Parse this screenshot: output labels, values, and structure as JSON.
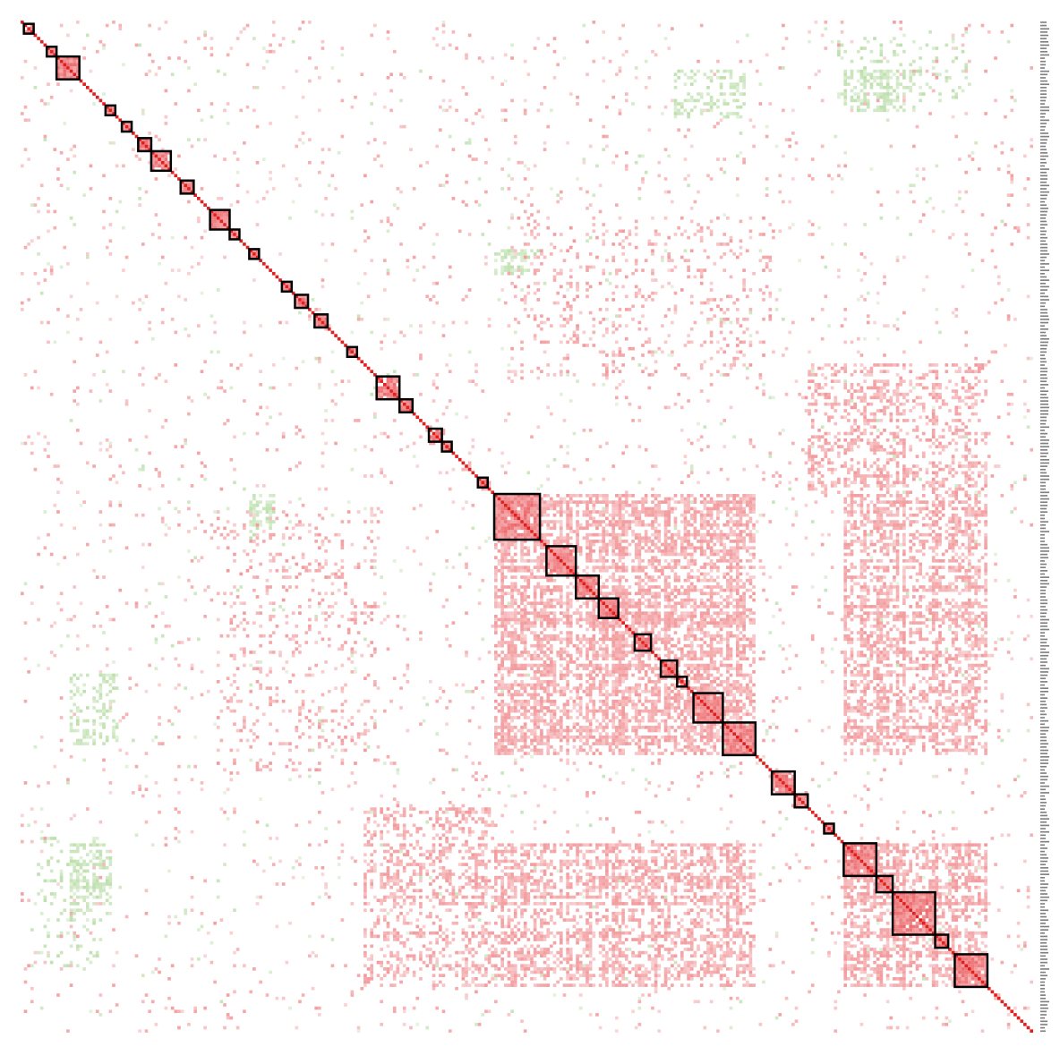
{
  "chart_data": {
    "type": "heatmap",
    "title": "",
    "xlabel": "",
    "ylabel": "",
    "n_variables": 310,
    "value_range": [
      -1,
      1
    ],
    "colors": {
      "positive": "#e8474b",
      "negative": "#88c66a",
      "diagonal": "#e0201f",
      "cluster_outline": "#000000",
      "background": "#ffffff"
    },
    "grid": false,
    "legend": "none",
    "row_tick_labels_visible": true,
    "clusters": [
      {
        "start": 1,
        "end": 4
      },
      {
        "start": 8,
        "end": 11
      },
      {
        "start": 11,
        "end": 18
      },
      {
        "start": 26,
        "end": 29
      },
      {
        "start": 31,
        "end": 34
      },
      {
        "start": 36,
        "end": 40
      },
      {
        "start": 40,
        "end": 46
      },
      {
        "start": 49,
        "end": 53
      },
      {
        "start": 58,
        "end": 64
      },
      {
        "start": 64,
        "end": 67
      },
      {
        "start": 70,
        "end": 73
      },
      {
        "start": 80,
        "end": 83
      },
      {
        "start": 84,
        "end": 88
      },
      {
        "start": 90,
        "end": 94
      },
      {
        "start": 100,
        "end": 103
      },
      {
        "start": 109,
        "end": 116
      },
      {
        "start": 116,
        "end": 120
      },
      {
        "start": 125,
        "end": 129
      },
      {
        "start": 129,
        "end": 132
      },
      {
        "start": 140,
        "end": 143
      },
      {
        "start": 145,
        "end": 159
      },
      {
        "start": 161,
        "end": 170
      },
      {
        "start": 170,
        "end": 177
      },
      {
        "start": 177,
        "end": 183
      },
      {
        "start": 188,
        "end": 193
      },
      {
        "start": 196,
        "end": 201
      },
      {
        "start": 201,
        "end": 204
      },
      {
        "start": 206,
        "end": 215
      },
      {
        "start": 215,
        "end": 225
      },
      {
        "start": 230,
        "end": 237
      },
      {
        "start": 237,
        "end": 241
      },
      {
        "start": 246,
        "end": 249
      },
      {
        "start": 252,
        "end": 262
      },
      {
        "start": 262,
        "end": 267
      },
      {
        "start": 267,
        "end": 280
      },
      {
        "start": 280,
        "end": 284
      },
      {
        "start": 286,
        "end": 296
      }
    ],
    "dense_positive_blocks": [
      {
        "rows": [
          145,
          225
        ],
        "cols": [
          145,
          225
        ],
        "strength": 0.55
      },
      {
        "rows": [
          145,
          225
        ],
        "cols": [
          252,
          296
        ],
        "strength": 0.45
      },
      {
        "rows": [
          252,
          296
        ],
        "cols": [
          145,
          225
        ],
        "strength": 0.45
      },
      {
        "rows": [
          252,
          296
        ],
        "cols": [
          252,
          296
        ],
        "strength": 0.6
      },
      {
        "rows": [
          240,
          296
        ],
        "cols": [
          105,
          145
        ],
        "strength": 0.3
      },
      {
        "rows": [
          105,
          145
        ],
        "cols": [
          240,
          296
        ],
        "strength": 0.3
      },
      {
        "rows": [
          60,
          110
        ],
        "cols": [
          150,
          230
        ],
        "strength": 0.18
      }
    ],
    "dense_negative_blocks": [
      {
        "rows": [
          70,
          78
        ],
        "cols": [
          145,
          160
        ],
        "strength": 0.4
      },
      {
        "rows": [
          145,
          160
        ],
        "cols": [
          70,
          78
        ],
        "strength": 0.4
      },
      {
        "rows": [
          15,
          30
        ],
        "cols": [
          200,
          222
        ],
        "strength": 0.3
      },
      {
        "rows": [
          200,
          222
        ],
        "cols": [
          15,
          30
        ],
        "strength": 0.3
      },
      {
        "rows": [
          252,
          275
        ],
        "cols": [
          15,
          28
        ],
        "strength": 0.3
      },
      {
        "rows": [
          15,
          28
        ],
        "cols": [
          252,
          275
        ],
        "strength": 0.3
      },
      {
        "rows": [
          5,
          25
        ],
        "cols": [
          250,
          290
        ],
        "strength": 0.25
      }
    ]
  }
}
